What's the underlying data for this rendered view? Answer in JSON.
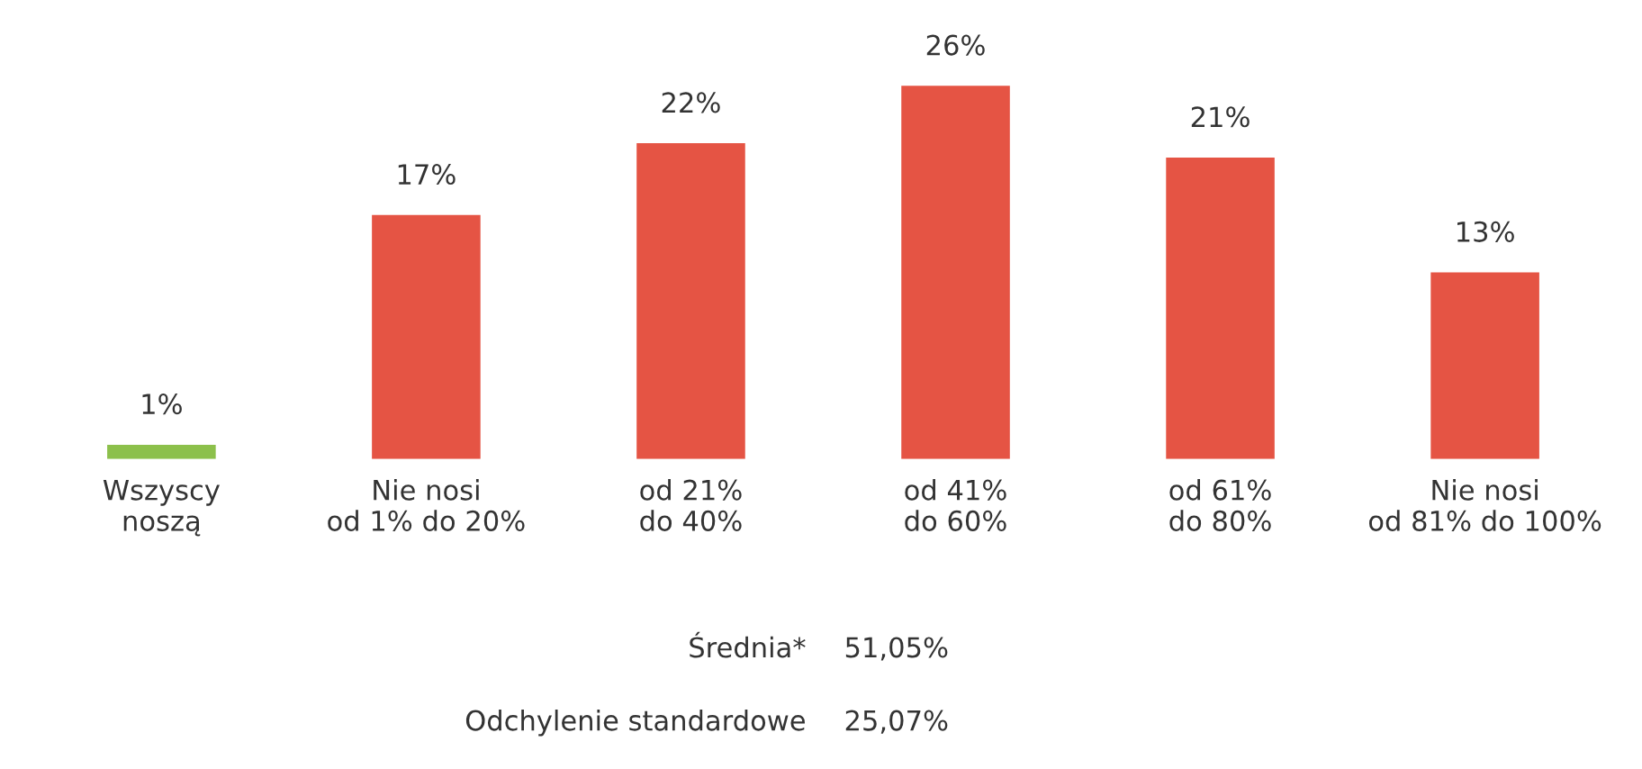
{
  "chart_data": {
    "type": "bar",
    "categories": [
      "Wszyscy\nnoszą",
      "Nie nosi\nod 1% do 20%",
      "od 21%\ndo 40%",
      "od 41%\ndo 60%",
      "od 61%\ndo 80%",
      "Nie nosi\nod 81% do 100%"
    ],
    "values": [
      1,
      17,
      22,
      26,
      21,
      13
    ],
    "colors": [
      "#8cc04b",
      "#e55444",
      "#e55444",
      "#e55444",
      "#e55444",
      "#e55444"
    ],
    "value_labels": [
      "1%",
      "17%",
      "22%",
      "26%",
      "21%",
      "13%"
    ],
    "annotations": [
      "Średnia*",
      "51,05%",
      "Odchylenie standardowe",
      "25,07%"
    ],
    "grid": false,
    "legend": false
  }
}
